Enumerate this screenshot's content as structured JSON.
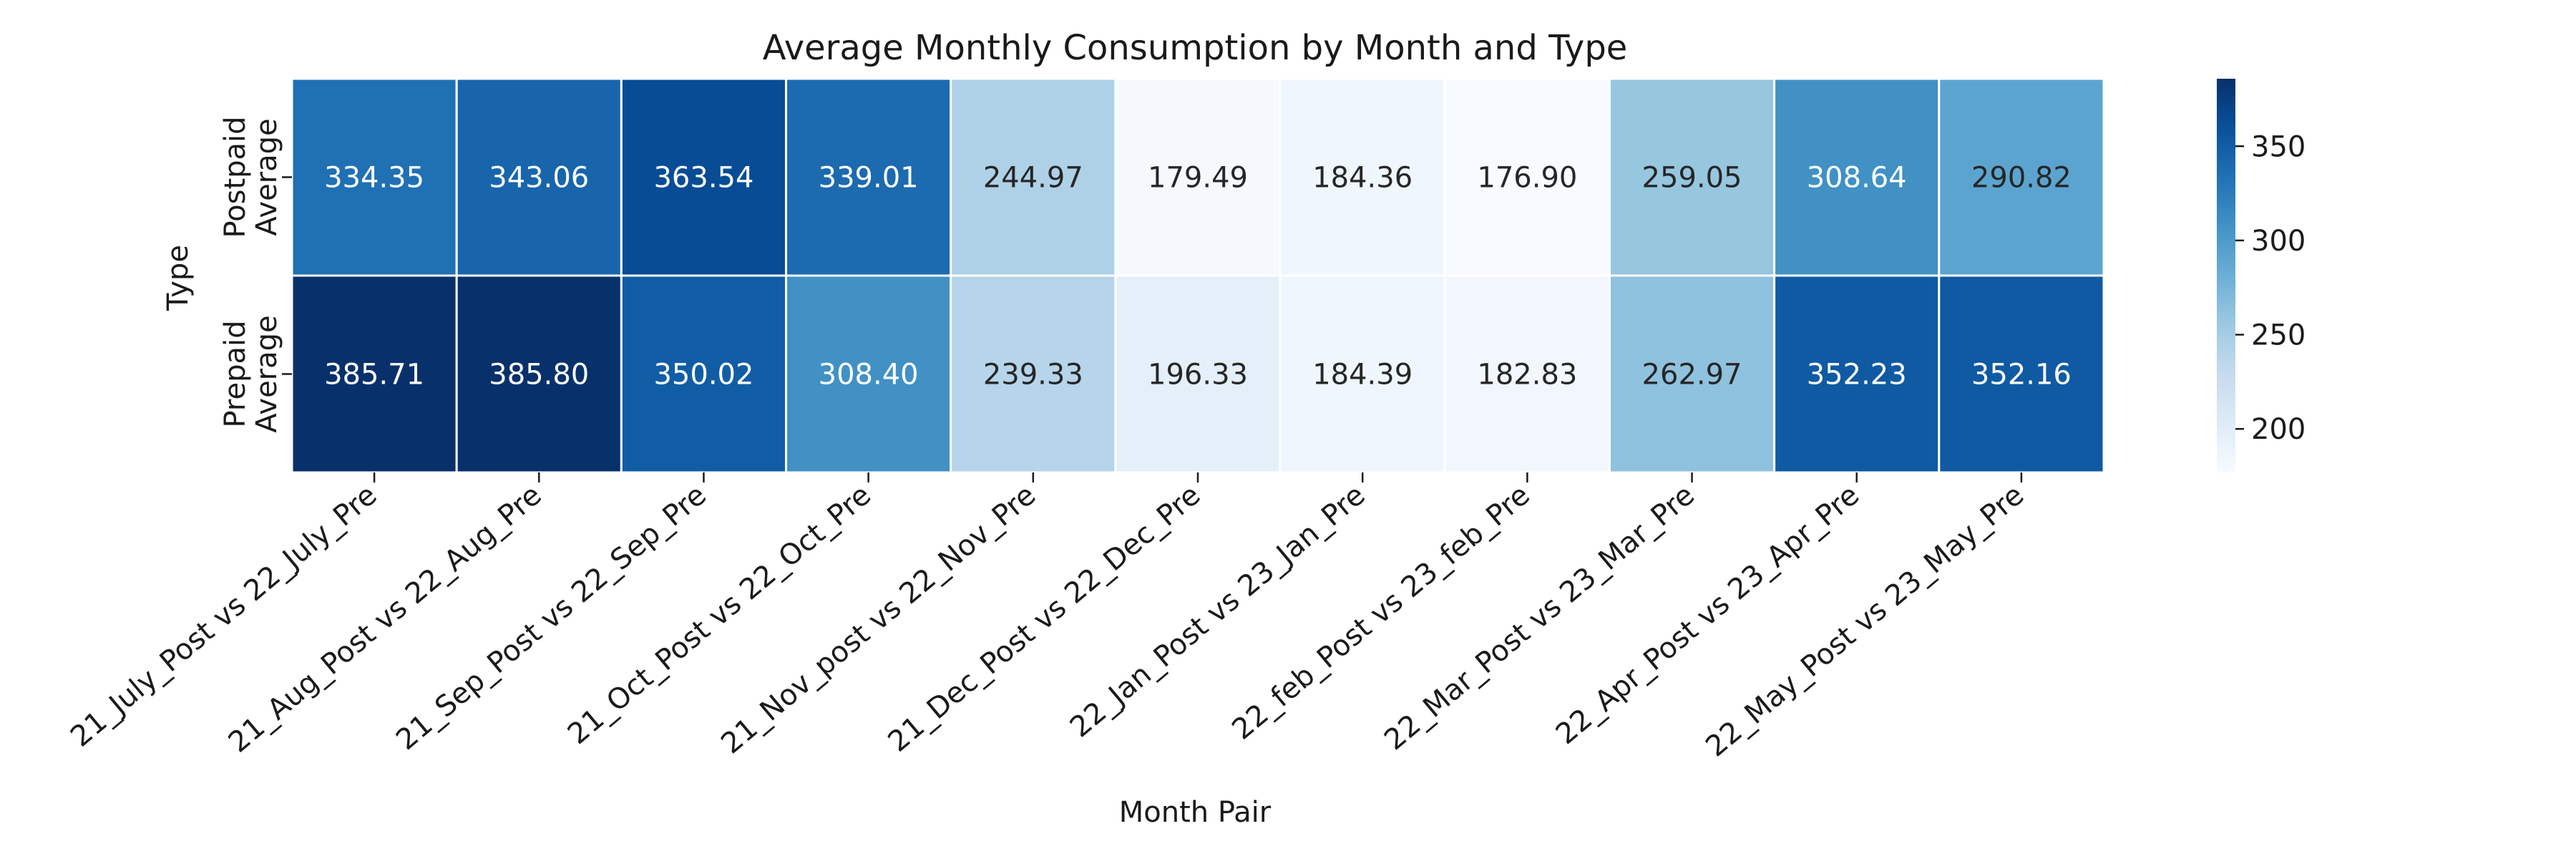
{
  "chart_data": {
    "type": "heatmap",
    "title": "Average Monthly Consumption by Month and Type",
    "xlabel": "Month Pair",
    "ylabel": "Type",
    "x_categories": [
      "21_July_Post vs 22_July_Pre",
      "21_Aug_Post vs 22_Aug_Pre",
      "21_Sep_Post vs 22_Sep_Pre",
      "21_Oct_Post vs 22_Oct_Pre",
      "21_Nov_post vs 22_Nov_Pre",
      "21_Dec_Post vs 22_Dec_Pre",
      "22_Jan_Post vs 23_Jan_Pre",
      "22_feb_Post vs 23_feb_Pre",
      "22_Mar_Post vs 23_Mar_Pre",
      "22_Apr_Post vs 23_Apr_Pre",
      "22_May_Post vs 23_May_Pre"
    ],
    "y_categories": [
      [
        "Postpaid",
        "Average"
      ],
      [
        "Prepaid",
        "Average"
      ]
    ],
    "values": [
      [
        334.35,
        343.06,
        363.54,
        339.01,
        244.97,
        179.49,
        184.36,
        176.9,
        259.05,
        308.64,
        290.82
      ],
      [
        385.71,
        385.8,
        350.02,
        308.4,
        239.33,
        196.33,
        184.39,
        182.83,
        262.97,
        352.23,
        352.16
      ]
    ],
    "value_labels": [
      [
        "334.35",
        "343.06",
        "363.54",
        "339.01",
        "244.97",
        "179.49",
        "184.36",
        "176.90",
        "259.05",
        "308.64",
        "290.82"
      ],
      [
        "385.71",
        "385.80",
        "350.02",
        "308.40",
        "239.33",
        "196.33",
        "184.39",
        "182.83",
        "262.97",
        "352.23",
        "352.16"
      ]
    ],
    "colormap": "Blues",
    "color_range": [
      176.9,
      385.8
    ],
    "colorbar": {
      "ticks": [
        200,
        250,
        300,
        350
      ],
      "tick_labels": [
        "200",
        "250",
        "300",
        "350"
      ]
    },
    "annotation_colors": {
      "dark_text": "#262626",
      "light_text": "#ffffff"
    },
    "grid": false,
    "legend": "colorbar-right"
  }
}
